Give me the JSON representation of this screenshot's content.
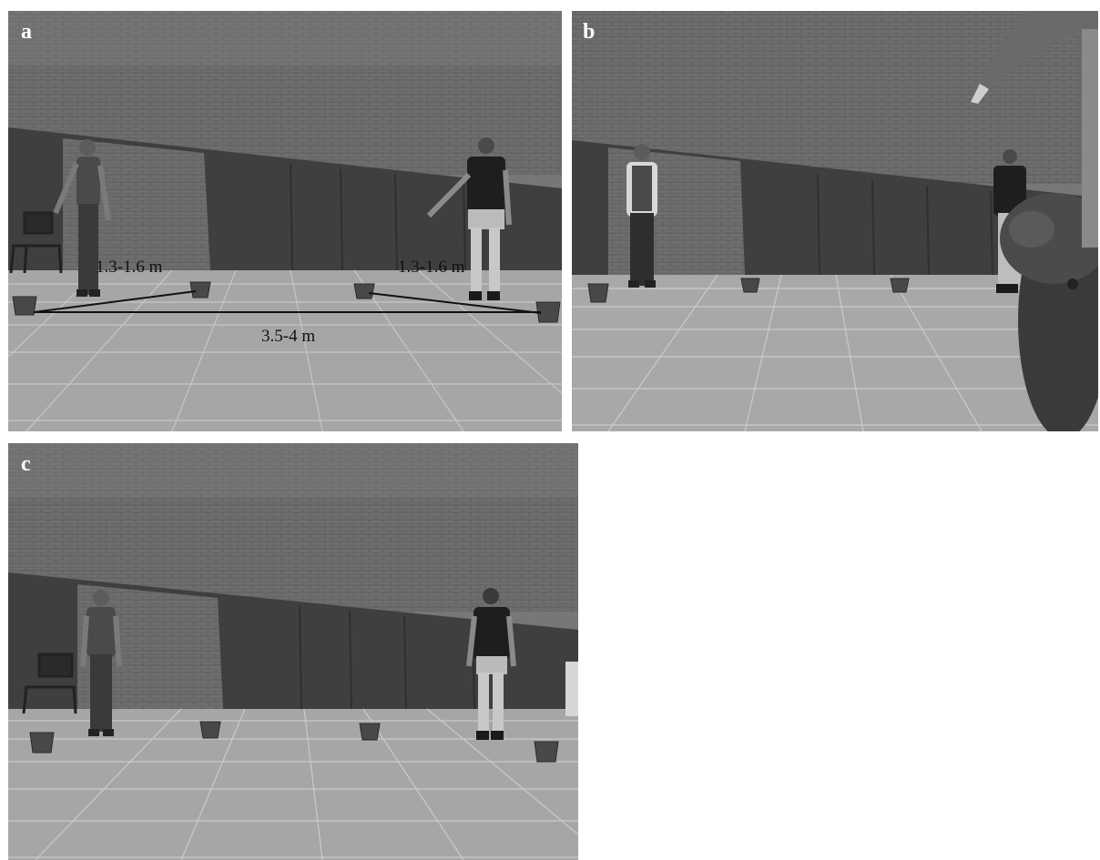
{
  "panels": [
    {
      "letter": "a",
      "labels": {
        "left_distance": "1.3-1.6 m",
        "right_distance": "1.3-1.6 m",
        "total_distance": "3.5-4 m"
      }
    },
    {
      "letter": "b"
    },
    {
      "letter": "c"
    }
  ],
  "colors": {
    "brick": "#6d6d6d",
    "dark_wall": "#3e3e3e",
    "floor": "#a5a5a5",
    "pot": "#4a4a4a"
  }
}
